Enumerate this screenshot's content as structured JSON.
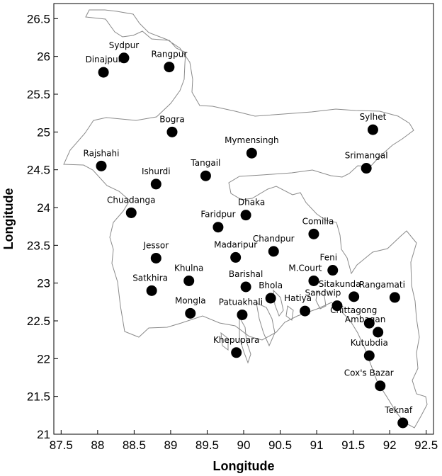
{
  "chart_data": {
    "type": "scatter",
    "xlabel": "Longitude",
    "ylabel": "Longitude",
    "xlim": [
      87.4,
      92.6
    ],
    "ylim": [
      21.0,
      26.7
    ],
    "xticks": [
      "87.5",
      "88",
      "88.5",
      "89",
      "89.5",
      "90",
      "90.5",
      "91",
      "91.5",
      "92",
      "92.5"
    ],
    "yticks": [
      "21",
      "21.5",
      "22",
      "22.5",
      "23",
      "23.5",
      "24",
      "24.5",
      "25",
      "25.5",
      "26",
      "26.5"
    ],
    "grid": false,
    "marker_color": "#000000",
    "boundary_color": "#8a8a8a",
    "points": [
      {
        "name": "Sydpur",
        "x": 88.36,
        "y": 25.98
      },
      {
        "name": "Dinajpur",
        "x": 88.08,
        "y": 25.79
      },
      {
        "name": "Rangpur",
        "x": 88.98,
        "y": 25.86
      },
      {
        "name": "Bogra",
        "x": 89.02,
        "y": 25.0
      },
      {
        "name": "Sylhet",
        "x": 91.77,
        "y": 25.03
      },
      {
        "name": "Mymensingh",
        "x": 90.11,
        "y": 24.72
      },
      {
        "name": "Rajshahi",
        "x": 88.05,
        "y": 24.55
      },
      {
        "name": "Srimangal",
        "x": 91.68,
        "y": 24.52
      },
      {
        "name": "Tangail",
        "x": 89.48,
        "y": 24.42
      },
      {
        "name": "Ishurdi",
        "x": 88.8,
        "y": 24.31
      },
      {
        "name": "Chuadanga",
        "x": 88.46,
        "y": 23.93
      },
      {
        "name": "Dhaka",
        "x": 90.03,
        "y": 23.9
      },
      {
        "name": "Faridpur",
        "x": 89.65,
        "y": 23.74
      },
      {
        "name": "Comilla",
        "x": 90.96,
        "y": 23.65
      },
      {
        "name": "Chandpur",
        "x": 90.41,
        "y": 23.42
      },
      {
        "name": "Jessor",
        "x": 88.8,
        "y": 23.33
      },
      {
        "name": "Madaripur",
        "x": 89.89,
        "y": 23.34
      },
      {
        "name": "Feni",
        "x": 91.22,
        "y": 23.17
      },
      {
        "name": "M.Court",
        "x": 90.96,
        "y": 23.03
      },
      {
        "name": "Khulna",
        "x": 89.25,
        "y": 23.03
      },
      {
        "name": "Barishal",
        "x": 90.03,
        "y": 22.95
      },
      {
        "name": "Satkhira",
        "x": 88.74,
        "y": 22.9
      },
      {
        "name": "Sitakunda",
        "x": 91.51,
        "y": 22.82
      },
      {
        "name": "Rangamati",
        "x": 92.07,
        "y": 22.81
      },
      {
        "name": "Bhola",
        "x": 90.37,
        "y": 22.8
      },
      {
        "name": "Sandwip",
        "x": 91.28,
        "y": 22.7
      },
      {
        "name": "Hatiya",
        "x": 90.84,
        "y": 22.63
      },
      {
        "name": "Mongla",
        "x": 89.27,
        "y": 22.6
      },
      {
        "name": "Patuakhali",
        "x": 89.98,
        "y": 22.58
      },
      {
        "name": "Chittagong",
        "x": 91.72,
        "y": 22.47
      },
      {
        "name": "Ambagan",
        "x": 91.84,
        "y": 22.35
      },
      {
        "name": "Khepupara",
        "x": 89.9,
        "y": 22.08
      },
      {
        "name": "Kutubdia",
        "x": 91.72,
        "y": 22.04
      },
      {
        "name": "Cox's Bazar",
        "x": 91.87,
        "y": 21.64
      },
      {
        "name": "Teknaf",
        "x": 92.18,
        "y": 21.15
      }
    ]
  }
}
